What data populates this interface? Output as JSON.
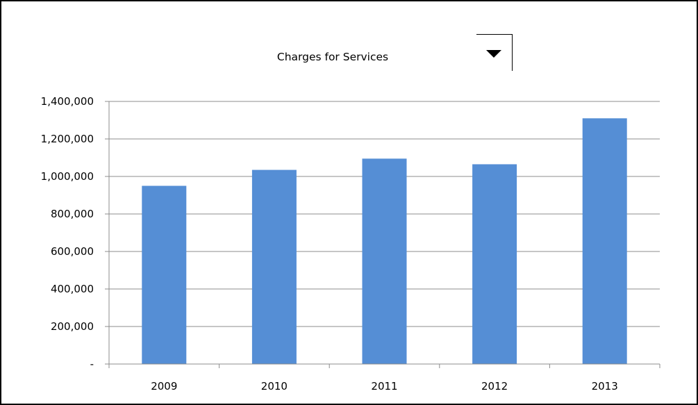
{
  "chart_data": {
    "type": "bar",
    "title": "Charges for Services",
    "categories": [
      "2009",
      "2010",
      "2011",
      "2012",
      "2013"
    ],
    "series": [
      {
        "values": [
          950000,
          1035000,
          1095000,
          1065000,
          1310000
        ]
      }
    ],
    "ylim": [
      0,
      1400000
    ],
    "y_ticks": [
      0,
      200000,
      400000,
      600000,
      800000,
      1000000,
      1200000,
      1400000
    ],
    "y_tick_labels": [
      "-",
      "200,000",
      "400,000",
      "600,000",
      "800,000",
      "1,000,000",
      "1,200,000",
      "1,400,000"
    ],
    "xlabel": "",
    "ylabel": "",
    "grid": true,
    "legend": "none",
    "bar_color": "#558ED5"
  },
  "controls": {
    "dropdown_icon": "triangle-down"
  }
}
